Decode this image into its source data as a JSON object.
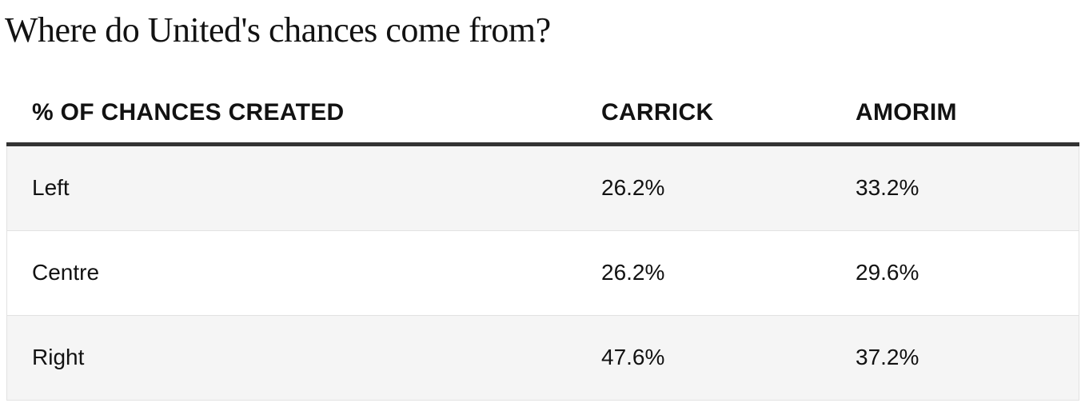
{
  "header": {
    "title": "Where do United's chances come from?"
  },
  "table": {
    "columns": [
      "% OF CHANCES CREATED",
      "CARRICK",
      "AMORIM"
    ],
    "rows": [
      [
        "Left",
        "26.2%",
        "33.2%"
      ],
      [
        "Centre",
        "26.2%",
        "29.6%"
      ],
      [
        "Right",
        "47.6%",
        "37.2%"
      ]
    ]
  }
}
